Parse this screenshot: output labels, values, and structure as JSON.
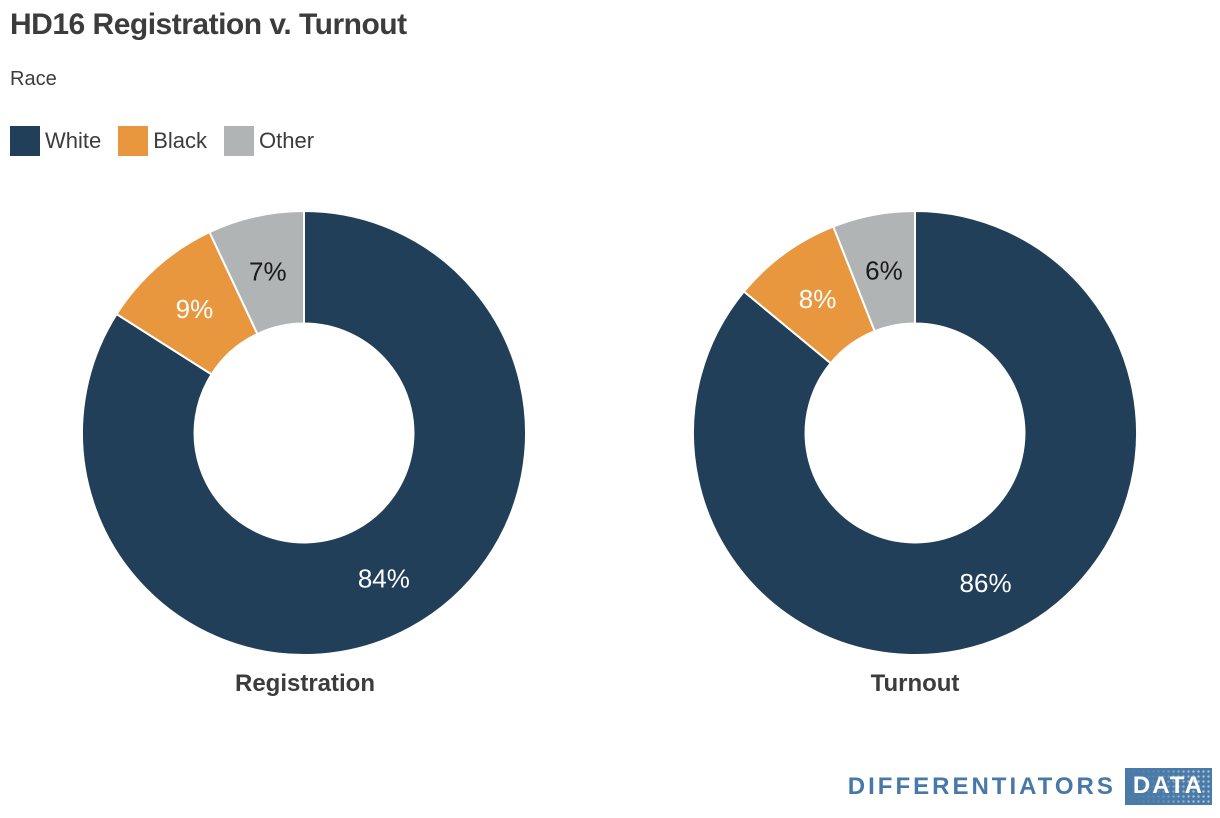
{
  "header": {
    "title": "HD16 Registration v. Turnout",
    "subtitle": "Race"
  },
  "legend": {
    "items": [
      {
        "label": "White",
        "color": "#213F58"
      },
      {
        "label": "Black",
        "color": "#E8973F"
      },
      {
        "label": "Other",
        "color": "#B0B4B5"
      }
    ]
  },
  "chart_data": {
    "type": "pie",
    "variant": "donut",
    "title": "HD16 Registration v. Turnout",
    "subtitle": "Race",
    "legend_position": "top-left",
    "grid": false,
    "categories": [
      "White",
      "Black",
      "Other"
    ],
    "colors": [
      "#213F58",
      "#E8973F",
      "#B0B4B5"
    ],
    "label_colors": [
      "#FFFFFF",
      "#FFFFFF",
      "#1A1A1A"
    ],
    "start_angle_deg": 0,
    "direction": "clockwise",
    "inner_radius_ratio": 0.493,
    "charts": [
      {
        "name": "Registration",
        "values": [
          84,
          9,
          7
        ],
        "labels": [
          "84%",
          "9%",
          "7%"
        ]
      },
      {
        "name": "Turnout",
        "values": [
          86,
          8,
          6
        ],
        "labels": [
          "86%",
          "8%",
          "6%"
        ]
      }
    ]
  },
  "footer": {
    "brand_text": "DIFFERENTIATORS",
    "brand_badge": "DATA",
    "brand_color": "#4878A8",
    "badge_bg": "#4A7AA8"
  }
}
